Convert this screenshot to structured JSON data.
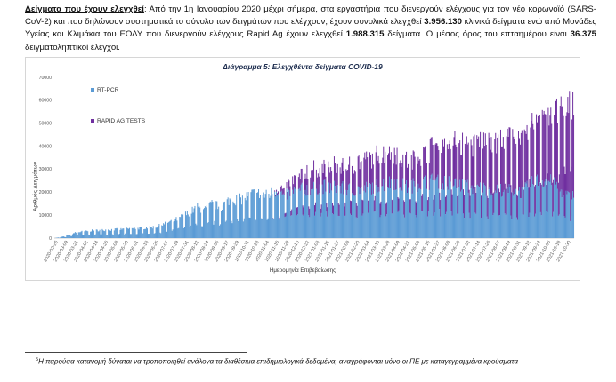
{
  "paragraph": {
    "lead": "Δείγματα που έχουν ελεγχθεί",
    "colon": ":",
    "text1": " Από την 1η Ιανουαρίου 2020 μέχρι σήμερα, στα εργαστήρια που διενεργούν ελέγχους για τον νέο κορωνοϊό (SARS-CoV-2) και που δηλώνουν συστηματικά το σύνολο των δειγμάτων που ελέγχουν, έχουν συνολικά ελεγχθεί ",
    "n1": "3.956.130",
    "text2": " κλινικά δείγματα ενώ από Μονάδες Υγείας και Κλιμάκια του ΕΟΔΥ που διενεργούν ελέγχους Rapid Ag έχουν ελεγχθεί ",
    "n2": "1.988.315",
    "text3": " δείγματα. Ο μέσος όρος του επταημέρου είναι ",
    "n3": "36.375",
    "text4": " δειγματοληπτικοί έλεγχοι."
  },
  "footnote": {
    "marker": "5",
    "text": "Η παρούσα κατανομή δύναται να τροποποιηθεί ανάλογα τα διαθέσιμα επιδημιολογικά δεδομένα, αναγράφονται μόνο οι ΠΕ με καταγεγραμμένα κρούσματα"
  },
  "chart_data": {
    "type": "bar",
    "stacked": true,
    "title": "Διάγραμμα 5: Ελεγχθέντα δείγματα COVID-19",
    "xlabel": "Ημερομηνία Επιβεβαίωσης",
    "ylabel": "Αριθμός Δειγμάτων",
    "ylim": [
      0,
      70000
    ],
    "yticks": [
      0,
      10000,
      20000,
      30000,
      40000,
      50000,
      60000,
      70000
    ],
    "xtick_labels": [
      "2020-02-26",
      "2020-03-09",
      "2020-03-21",
      "2020-04-02",
      "2020-04-14",
      "2020-04-26",
      "2020-05-08",
      "2020-05-20",
      "2020-06-01",
      "2020-06-13",
      "2020-06-25",
      "2020-07-07",
      "2020-07-19",
      "2020-07-31",
      "2020-08-12",
      "2020-08-24",
      "2020-09-05",
      "2020-09-17",
      "2020-09-29",
      "2020-10-11",
      "2020-10-23",
      "2020-11-04",
      "2020-11-16",
      "2020-11-28",
      "2020-12-10",
      "2020-12-22",
      "2021-01-03",
      "2021-01-15",
      "2021-01-27",
      "2021-02-08",
      "2021-02-20",
      "2021-03-04",
      "2021-03-16",
      "2021-03-28",
      "2021-04-09",
      "2021-04-21",
      "2021-05-03",
      "2021-05-15",
      "2021-05-27",
      "2021-06-08",
      "2021-06-20",
      "2021-07-02",
      "2021-07-14",
      "2021-07-26",
      "2021-08-07",
      "2021-08-19",
      "2021-08-31",
      "2021-09-12",
      "2021-09-24",
      "2021-10-06",
      "2021-10-18",
      "2021-10-30"
    ],
    "series": [
      {
        "name": "RT-PCR",
        "color": "#5b9bd5",
        "values": []
      },
      {
        "name": "RAPID AG TESTS",
        "color": "#7030a0",
        "values": []
      }
    ],
    "daily_days": 612,
    "pcr_keypoints": [
      [
        0,
        0
      ],
      [
        12,
        800
      ],
      [
        25,
        2500
      ],
      [
        40,
        3200
      ],
      [
        60,
        3600
      ],
      [
        80,
        3900
      ],
      [
        100,
        4300
      ],
      [
        120,
        5000
      ],
      [
        140,
        7500
      ],
      [
        150,
        9500
      ],
      [
        160,
        11500
      ],
      [
        168,
        13500
      ],
      [
        176,
        12000
      ],
      [
        185,
        15000
      ],
      [
        195,
        13500
      ],
      [
        205,
        16500
      ],
      [
        220,
        17000
      ],
      [
        235,
        19500
      ],
      [
        250,
        18500
      ],
      [
        262,
        21000
      ],
      [
        270,
        18000
      ],
      [
        280,
        20500
      ],
      [
        300,
        21500
      ],
      [
        315,
        22500
      ],
      [
        330,
        22000
      ],
      [
        350,
        21000
      ],
      [
        365,
        21500
      ],
      [
        380,
        23000
      ],
      [
        400,
        24500
      ],
      [
        415,
        22000
      ],
      [
        430,
        24000
      ],
      [
        450,
        25000
      ],
      [
        470,
        23500
      ],
      [
        490,
        22000
      ],
      [
        510,
        21500
      ],
      [
        530,
        21000
      ],
      [
        550,
        20000
      ],
      [
        565,
        24500
      ],
      [
        580,
        25500
      ],
      [
        595,
        21000
      ],
      [
        605,
        18000
      ],
      [
        611,
        20500
      ]
    ],
    "ag_keypoints": [
      [
        0,
        0
      ],
      [
        255,
        0
      ],
      [
        262,
        1000
      ],
      [
        280,
        5000
      ],
      [
        300,
        8000
      ],
      [
        320,
        8000
      ],
      [
        340,
        10000
      ],
      [
        360,
        12000
      ],
      [
        380,
        12500
      ],
      [
        400,
        13000
      ],
      [
        420,
        11000
      ],
      [
        440,
        14000
      ],
      [
        460,
        17000
      ],
      [
        480,
        18500
      ],
      [
        500,
        20000
      ],
      [
        520,
        21000
      ],
      [
        540,
        23500
      ],
      [
        560,
        25500
      ],
      [
        575,
        28000
      ],
      [
        590,
        31000
      ],
      [
        602,
        37000
      ],
      [
        611,
        42000
      ]
    ]
  }
}
